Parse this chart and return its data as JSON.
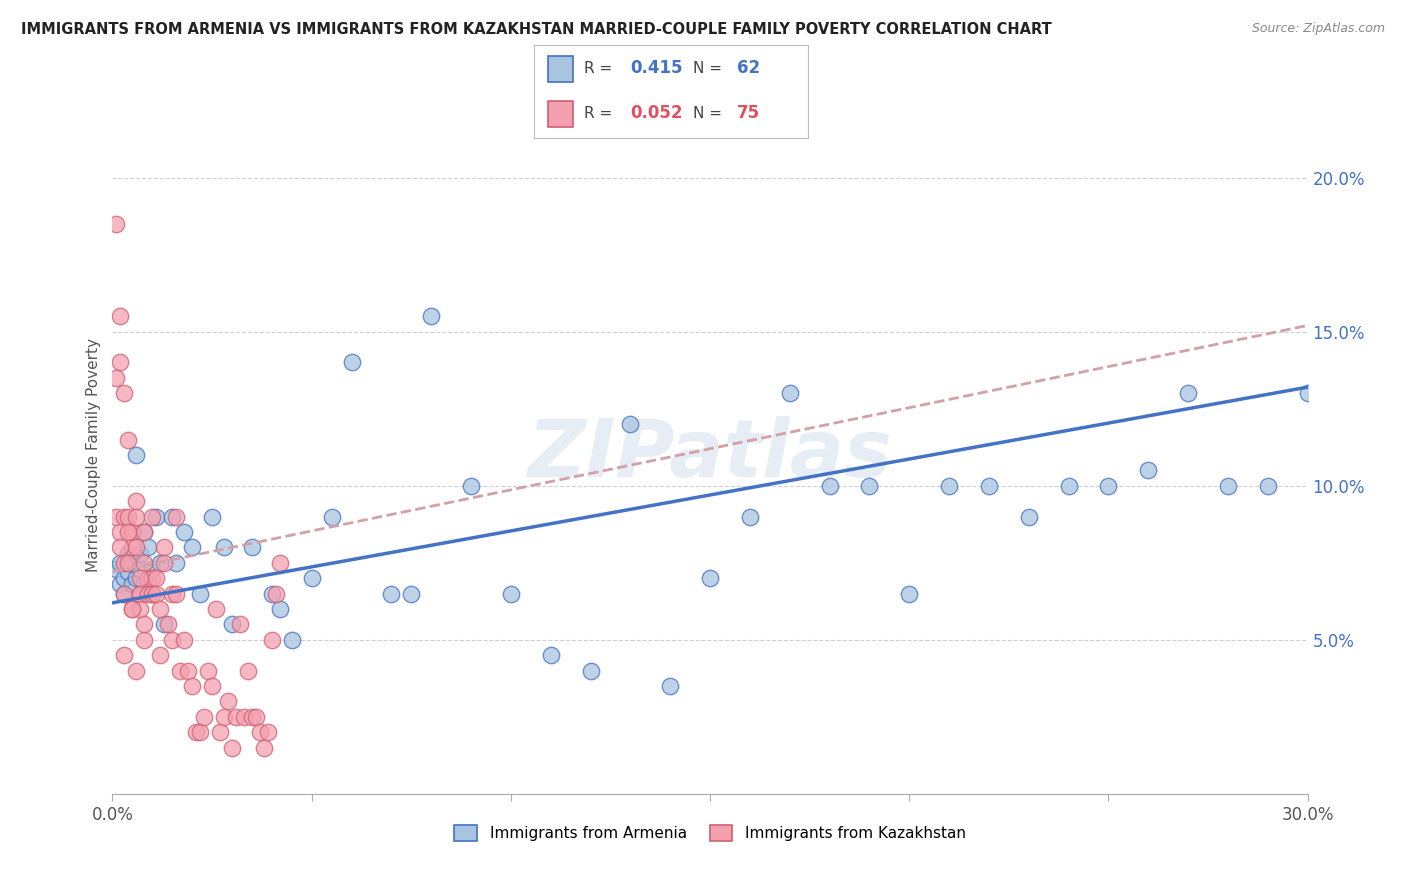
{
  "title": "IMMIGRANTS FROM ARMENIA VS IMMIGRANTS FROM KAZAKHSTAN MARRIED-COUPLE FAMILY POVERTY CORRELATION CHART",
  "source": "Source: ZipAtlas.com",
  "ylabel": "Married-Couple Family Poverty",
  "legend_label_1": "Immigrants from Armenia",
  "legend_label_2": "Immigrants from Kazakhstan",
  "R1": 0.415,
  "N1": 62,
  "R2": 0.052,
  "N2": 75,
  "color1": "#a8c4e0",
  "color2": "#f4a0b0",
  "trendline1_color": "#4472c4",
  "trendline2_color": "#d4a0a8",
  "xlim": [
    0.0,
    0.3
  ],
  "ylim": [
    0.0,
    0.22
  ],
  "ytick_right": [
    0.05,
    0.1,
    0.15,
    0.2
  ],
  "ytick_right_labels": [
    "5.0%",
    "10.0%",
    "15.0%",
    "20.0%"
  ],
  "watermark": "ZIPatlas",
  "background_color": "#ffffff",
  "armenia_x": [
    0.001,
    0.002,
    0.002,
    0.003,
    0.003,
    0.004,
    0.004,
    0.005,
    0.005,
    0.006,
    0.006,
    0.007,
    0.007,
    0.008,
    0.008,
    0.009,
    0.009,
    0.01,
    0.01,
    0.011,
    0.012,
    0.013,
    0.015,
    0.016,
    0.018,
    0.02,
    0.022,
    0.025,
    0.028,
    0.03,
    0.035,
    0.04,
    0.045,
    0.05,
    0.055,
    0.06,
    0.07,
    0.08,
    0.09,
    0.1,
    0.11,
    0.12,
    0.13,
    0.14,
    0.15,
    0.16,
    0.17,
    0.18,
    0.19,
    0.2,
    0.21,
    0.22,
    0.23,
    0.24,
    0.25,
    0.26,
    0.27,
    0.28,
    0.29,
    0.3,
    0.042,
    0.075
  ],
  "armenia_y": [
    0.073,
    0.068,
    0.075,
    0.07,
    0.065,
    0.072,
    0.078,
    0.068,
    0.075,
    0.07,
    0.11,
    0.073,
    0.078,
    0.068,
    0.085,
    0.08,
    0.068,
    0.073,
    0.065,
    0.09,
    0.075,
    0.055,
    0.09,
    0.075,
    0.085,
    0.08,
    0.065,
    0.09,
    0.08,
    0.055,
    0.08,
    0.065,
    0.05,
    0.07,
    0.09,
    0.14,
    0.065,
    0.155,
    0.1,
    0.065,
    0.045,
    0.04,
    0.12,
    0.035,
    0.07,
    0.09,
    0.13,
    0.1,
    0.1,
    0.065,
    0.1,
    0.1,
    0.09,
    0.1,
    0.1,
    0.105,
    0.13,
    0.1,
    0.1,
    0.13,
    0.06,
    0.065
  ],
  "kazakhstan_x": [
    0.001,
    0.001,
    0.002,
    0.002,
    0.002,
    0.003,
    0.003,
    0.003,
    0.003,
    0.004,
    0.004,
    0.004,
    0.005,
    0.005,
    0.005,
    0.005,
    0.006,
    0.006,
    0.006,
    0.007,
    0.007,
    0.007,
    0.008,
    0.008,
    0.008,
    0.009,
    0.009,
    0.01,
    0.01,
    0.01,
    0.011,
    0.011,
    0.012,
    0.012,
    0.013,
    0.013,
    0.014,
    0.015,
    0.015,
    0.016,
    0.016,
    0.017,
    0.018,
    0.019,
    0.02,
    0.021,
    0.022,
    0.023,
    0.024,
    0.025,
    0.026,
    0.027,
    0.028,
    0.029,
    0.03,
    0.031,
    0.032,
    0.033,
    0.034,
    0.035,
    0.036,
    0.037,
    0.038,
    0.039,
    0.04,
    0.041,
    0.042,
    0.001,
    0.002,
    0.003,
    0.004,
    0.005,
    0.006,
    0.007,
    0.008
  ],
  "kazakhstan_y": [
    0.185,
    0.09,
    0.155,
    0.14,
    0.085,
    0.09,
    0.065,
    0.075,
    0.13,
    0.115,
    0.075,
    0.09,
    0.085,
    0.085,
    0.08,
    0.06,
    0.09,
    0.08,
    0.095,
    0.065,
    0.065,
    0.06,
    0.075,
    0.085,
    0.05,
    0.065,
    0.07,
    0.09,
    0.065,
    0.07,
    0.07,
    0.065,
    0.045,
    0.06,
    0.08,
    0.075,
    0.055,
    0.05,
    0.065,
    0.065,
    0.09,
    0.04,
    0.05,
    0.04,
    0.035,
    0.02,
    0.02,
    0.025,
    0.04,
    0.035,
    0.06,
    0.02,
    0.025,
    0.03,
    0.015,
    0.025,
    0.055,
    0.025,
    0.04,
    0.025,
    0.025,
    0.02,
    0.015,
    0.02,
    0.05,
    0.065,
    0.075,
    0.135,
    0.08,
    0.045,
    0.085,
    0.06,
    0.04,
    0.07,
    0.055
  ],
  "trendline1_x": [
    0.0,
    0.3
  ],
  "trendline1_y": [
    0.062,
    0.132
  ],
  "trendline2_x": [
    0.0,
    0.3
  ],
  "trendline2_y": [
    0.072,
    0.152
  ]
}
